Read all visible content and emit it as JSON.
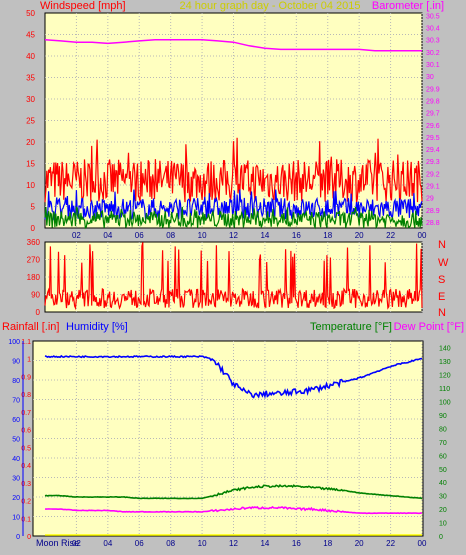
{
  "header": {
    "left_title": "Windspeed [mph]",
    "center_title": "24 hour graph day - October 04 2015",
    "right_title": "Barometer [.in]"
  },
  "colors": {
    "background": "#c0c0c0",
    "plot_bg": "#ffffc0",
    "grid": "#b8b8b8",
    "red": "#ff0000",
    "blue": "#0000ff",
    "green": "#008000",
    "magenta": "#ff00ff",
    "yellow": "#ffff00",
    "darkblue": "#00008b"
  },
  "chart_data": [
    {
      "type": "line",
      "id": "wind-baro",
      "x_ticks": [
        "02",
        "04",
        "06",
        "08",
        "10",
        "12",
        "14",
        "16",
        "18",
        "20",
        "22",
        "00"
      ],
      "y_left": {
        "label": "Windspeed [mph]",
        "range": [
          0,
          50
        ],
        "ticks": [
          0,
          5,
          10,
          15,
          20,
          25,
          30,
          35,
          40,
          45,
          50
        ]
      },
      "y_right": {
        "label": "Barometer [.in]",
        "range": [
          28.75,
          30.52
        ],
        "ticks": [
          28.8,
          28.9,
          29.0,
          29.1,
          29.2,
          29.3,
          29.4,
          29.5,
          29.6,
          29.7,
          29.8,
          29.9,
          30.0,
          30.1,
          30.2,
          30.3,
          30.4,
          30.5
        ],
        "tick_labels": [
          "28.8",
          "28.9",
          "29",
          "29.1",
          "29.2",
          "29.3",
          "29.4",
          "29.5",
          "29.6",
          "29.7",
          "29.8",
          "29.9",
          "30",
          "30.1",
          "30.2",
          "30.3",
          "30.4",
          "30.5"
        ]
      },
      "series": [
        {
          "name": "Barometer [.in]",
          "axis": "right",
          "color": "#ff00ff",
          "x": [
            0,
            1,
            2,
            3,
            4,
            5,
            6,
            7,
            8,
            9,
            10,
            11,
            12,
            13,
            14,
            15,
            16,
            17,
            18,
            19,
            20,
            21,
            22,
            23,
            24
          ],
          "values": [
            30.3,
            30.29,
            30.28,
            30.28,
            30.27,
            30.28,
            30.29,
            30.3,
            30.3,
            30.3,
            30.3,
            30.29,
            30.28,
            30.25,
            30.23,
            30.22,
            30.22,
            30.22,
            30.22,
            30.22,
            30.22,
            30.21,
            30.21,
            30.21,
            30.21
          ]
        },
        {
          "name": "wind gust",
          "axis": "left",
          "color": "#ff0000",
          "typical_range": [
            6,
            16
          ],
          "peak": 21
        },
        {
          "name": "wind average",
          "axis": "left",
          "color": "#0000ff",
          "typical_range": [
            2,
            7
          ],
          "peak": 9
        },
        {
          "name": "wind speed",
          "axis": "left",
          "color": "#008000",
          "typical_range": [
            0,
            4
          ],
          "peak": 5
        }
      ]
    },
    {
      "type": "line",
      "id": "wind-direction",
      "x_ticks": [
        "02",
        "04",
        "06",
        "08",
        "10",
        "12",
        "14",
        "16",
        "18",
        "20",
        "22",
        "00"
      ],
      "y_left": {
        "range": [
          0,
          360
        ],
        "ticks": [
          0,
          90,
          180,
          270,
          360
        ]
      },
      "y_right_labels": [
        "N",
        "W",
        "S",
        "E",
        "N"
      ],
      "series": [
        {
          "name": "wind direction",
          "color": "#ff0000",
          "typical_range": [
            20,
            120
          ],
          "spikes_to": 360
        }
      ]
    },
    {
      "type": "line",
      "id": "rain-hum-temp",
      "x_ticks": [
        "02",
        "04",
        "06",
        "08",
        "10",
        "12",
        "14",
        "16",
        "18",
        "20",
        "22",
        "00"
      ],
      "y_rain": {
        "label": "Rainfall [.in]",
        "range": [
          0,
          1.1
        ],
        "ticks": [
          0,
          0.1,
          0.2,
          0.3,
          0.4,
          0.5,
          0.6,
          0.7,
          0.8,
          0.9,
          1,
          1.1
        ]
      },
      "y_humidity": {
        "label": "Humidity [%]",
        "range": [
          0,
          100
        ],
        "ticks": [
          0,
          10,
          20,
          30,
          40,
          50,
          60,
          70,
          80,
          90,
          100
        ]
      },
      "y_temp": {
        "label": "Temperature [°F]",
        "label2": "Dew Point [°F]",
        "range": [
          0,
          145
        ],
        "ticks": [
          0,
          10,
          20,
          30,
          40,
          50,
          60,
          70,
          80,
          90,
          100,
          110,
          120,
          130,
          140
        ]
      },
      "series": [
        {
          "name": "Humidity [%]",
          "axis": "humidity",
          "color": "#0000ff",
          "x": [
            0,
            1,
            2,
            3,
            4,
            5,
            6,
            7,
            8,
            9,
            10,
            10.5,
            11,
            11.5,
            12,
            12.5,
            13,
            13.5,
            14,
            15,
            16,
            17,
            18,
            19,
            20,
            21,
            22,
            23,
            24
          ],
          "values": [
            92,
            92,
            92,
            92,
            92,
            92,
            92,
            92,
            92,
            92,
            92,
            91,
            88,
            83,
            78,
            75,
            73,
            72,
            73,
            73,
            74,
            75,
            77,
            79,
            81,
            84,
            87,
            89,
            91
          ]
        },
        {
          "name": "Temperature [°F]",
          "axis": "temp",
          "color": "#008000",
          "x": [
            0,
            1,
            2,
            3,
            4,
            5,
            6,
            7,
            8,
            9,
            10,
            11,
            12,
            13,
            14,
            15,
            16,
            17,
            18,
            19,
            20,
            21,
            22,
            23,
            24
          ],
          "values": [
            30,
            30,
            29,
            29,
            29,
            29,
            28,
            28,
            28,
            28,
            28,
            31,
            34,
            36,
            37,
            37,
            37,
            36,
            35,
            34,
            32,
            31,
            30,
            29,
            28
          ]
        },
        {
          "name": "Dew Point [°F]",
          "axis": "temp",
          "color": "#ff00ff",
          "x": [
            0,
            1,
            2,
            3,
            4,
            5,
            6,
            7,
            8,
            9,
            10,
            11,
            12,
            13,
            14,
            15,
            16,
            17,
            18,
            19,
            20,
            21,
            22,
            23,
            24
          ],
          "values": [
            20,
            20,
            19,
            19,
            19,
            18,
            18,
            18,
            18,
            18,
            18,
            19,
            20,
            21,
            21,
            21,
            20,
            20,
            19,
            18,
            17,
            17,
            17,
            17,
            17
          ]
        },
        {
          "name": "Rainfall [.in]",
          "axis": "rain",
          "color": "#ffff00",
          "x": [
            0,
            24
          ],
          "values": [
            0,
            0
          ]
        }
      ],
      "moon": {
        "rise_label": "Moon Rise"
      }
    }
  ]
}
